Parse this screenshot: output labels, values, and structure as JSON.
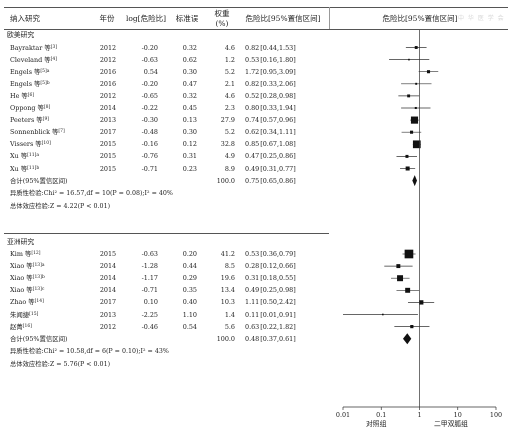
{
  "headers": {
    "study": "纳入研究",
    "year": "年份",
    "log": "log[危险比]",
    "se": "标准误",
    "weight_1": "权重",
    "weight_2": "(%)",
    "ci": "危险比[95%置信区间]",
    "plot": "危险比[95%置信区间]"
  },
  "watermark": "中 华 医 学 会",
  "groups": [
    {
      "name": "欧美研究",
      "rows": [
        {
          "author": "Bayraktar 等",
          "ref": "[3]",
          "year": "2012",
          "log": "-0.20",
          "se": "0.32",
          "weight": "4.6",
          "hr": "0.82",
          "ci": "[0.44,1.53]"
        },
        {
          "author": "Cleveland 等",
          "ref": "[4]",
          "year": "2012",
          "log": "-0.63",
          "se": "0.62",
          "weight": "1.2",
          "hr": "0.53",
          "ci": "[0.16,1.80]"
        },
        {
          "author": "Engels 等",
          "ref": "[5]a",
          "year": "2016",
          "log": "0.54",
          "se": "0.30",
          "weight": "5.2",
          "hr": "1.72",
          "ci": "[0.95,3.09]"
        },
        {
          "author": "Engels 等",
          "ref": "[5]b",
          "year": "2016",
          "log": "-0.20",
          "se": "0.47",
          "weight": "2.1",
          "hr": "0.82",
          "ci": "[0.33,2.06]"
        },
        {
          "author": "He 等",
          "ref": "[6]",
          "year": "2012",
          "log": "-0.65",
          "se": "0.32",
          "weight": "4.6",
          "hr": "0.52",
          "ci": "[0.28,0.98]"
        },
        {
          "author": "Oppong 等",
          "ref": "[8]",
          "year": "2014",
          "log": "-0.22",
          "se": "0.45",
          "weight": "2.3",
          "hr": "0.80",
          "ci": "[0.33,1.94]"
        },
        {
          "author": "Peeters 等",
          "ref": "[9]",
          "year": "2013",
          "log": "-0.30",
          "se": "0.13",
          "weight": "27.9",
          "hr": "0.74",
          "ci": "[0.57,0.96]"
        },
        {
          "author": "Sonnenblick 等",
          "ref": "[7]",
          "year": "2017",
          "log": "-0.48",
          "se": "0.30",
          "weight": "5.2",
          "hr": "0.62",
          "ci": "[0.34,1.11]"
        },
        {
          "author": "Vissers 等",
          "ref": "[10]",
          "year": "2015",
          "log": "-0.16",
          "se": "0.12",
          "weight": "32.8",
          "hr": "0.85",
          "ci": "[0.67,1.08]"
        },
        {
          "author": "Xu 等",
          "ref": "[11]a",
          "year": "2015",
          "log": "-0.76",
          "se": "0.31",
          "weight": "4.9",
          "hr": "0.47",
          "ci": "[0.25,0.86]"
        },
        {
          "author": "Xu 等",
          "ref": "[11]b",
          "year": "2015",
          "log": "-0.71",
          "se": "0.23",
          "weight": "8.9",
          "hr": "0.49",
          "ci": "[0.31,0.77]"
        }
      ],
      "total": {
        "label": "合计(95%置信区间)",
        "weight": "100.0",
        "hr": "0.75",
        "ci": "[0.65,0.86]"
      },
      "heterogeneity": "异质性检验:Chi² = 16.57,df = 10(P = 0.08);I² = 40%",
      "overall": "总体效应检验:Z = 4.22(P < 0.01)"
    },
    {
      "name": "亚洲研究",
      "rows": [
        {
          "author": "Kim 等",
          "ref": "[12]",
          "year": "2015",
          "log": "-0.63",
          "se": "0.20",
          "weight": "41.2",
          "hr": "0.53",
          "ci": "[0.36,0.79]"
        },
        {
          "author": "Xiao 等",
          "ref": "[13]a",
          "year": "2014",
          "log": "-1.28",
          "se": "0.44",
          "weight": "8.5",
          "hr": "0.28",
          "ci": "[0.12,0.66]"
        },
        {
          "author": "Xiao 等",
          "ref": "[13]b",
          "year": "2014",
          "log": "-1.17",
          "se": "0.29",
          "weight": "19.6",
          "hr": "0.31",
          "ci": "[0.18,0.55]"
        },
        {
          "author": "Xiao 等",
          "ref": "[13]c",
          "year": "2014",
          "log": "-0.71",
          "se": "0.35",
          "weight": "13.4",
          "hr": "0.49",
          "ci": "[0.25,0.98]"
        },
        {
          "author": "Zhao 等",
          "ref": "[14]",
          "year": "2017",
          "log": "0.10",
          "se": "0.40",
          "weight": "10.3",
          "hr": "1.11",
          "ci": "[0.50,2.42]"
        },
        {
          "author": "朱闻捷",
          "ref": "[15]",
          "year": "2013",
          "log": "-2.25",
          "se": "1.10",
          "weight": "1.4",
          "hr": "0.11",
          "ci": "[0.01,0.91]"
        },
        {
          "author": "赵菁",
          "ref": "[16]",
          "year": "2012",
          "log": "-0.46",
          "se": "0.54",
          "weight": "5.6",
          "hr": "0.63",
          "ci": "[0.22,1.82]"
        }
      ],
      "total": {
        "label": "合计(95%置信区间)",
        "weight": "100.0",
        "hr": "0.48",
        "ci": "[0.37,0.61]"
      },
      "heterogeneity": "异质性检验:Chi² = 10.58,df = 6(P = 0.10);I² = 43%",
      "overall": "总体效应检验:Z = 5.76(P < 0.01)"
    }
  ],
  "axis": {
    "ticks": [
      0.01,
      0.1,
      1,
      10,
      100
    ],
    "tick_labels": [
      "0.01",
      "0.1",
      "1",
      "10",
      "100"
    ],
    "scale": "log",
    "left_label": "对照组",
    "right_label": "二甲双胍组"
  },
  "chart_data": {
    "type": "scatter",
    "xscale": "log",
    "xlim": [
      0.01,
      100
    ],
    "reference_line": 1,
    "groups": [
      {
        "name": "欧美研究",
        "studies": [
          {
            "hr": 0.82,
            "lo": 0.44,
            "hi": 1.53,
            "weight": 4.6
          },
          {
            "hr": 0.53,
            "lo": 0.16,
            "hi": 1.8,
            "weight": 1.2
          },
          {
            "hr": 1.72,
            "lo": 0.95,
            "hi": 3.09,
            "weight": 5.2
          },
          {
            "hr": 0.82,
            "lo": 0.33,
            "hi": 2.06,
            "weight": 2.1
          },
          {
            "hr": 0.52,
            "lo": 0.28,
            "hi": 0.98,
            "weight": 4.6
          },
          {
            "hr": 0.8,
            "lo": 0.33,
            "hi": 1.94,
            "weight": 2.3
          },
          {
            "hr": 0.74,
            "lo": 0.57,
            "hi": 0.96,
            "weight": 27.9
          },
          {
            "hr": 0.62,
            "lo": 0.34,
            "hi": 1.11,
            "weight": 5.2
          },
          {
            "hr": 0.85,
            "lo": 0.67,
            "hi": 1.08,
            "weight": 32.8
          },
          {
            "hr": 0.47,
            "lo": 0.25,
            "hi": 0.86,
            "weight": 4.9
          },
          {
            "hr": 0.49,
            "lo": 0.31,
            "hi": 0.77,
            "weight": 8.9
          }
        ],
        "pooled": {
          "hr": 0.75,
          "lo": 0.65,
          "hi": 0.86
        }
      },
      {
        "name": "亚洲研究",
        "studies": [
          {
            "hr": 0.53,
            "lo": 0.36,
            "hi": 0.79,
            "weight": 41.2
          },
          {
            "hr": 0.28,
            "lo": 0.12,
            "hi": 0.66,
            "weight": 8.5
          },
          {
            "hr": 0.31,
            "lo": 0.18,
            "hi": 0.55,
            "weight": 19.6
          },
          {
            "hr": 0.49,
            "lo": 0.25,
            "hi": 0.98,
            "weight": 13.4
          },
          {
            "hr": 1.11,
            "lo": 0.5,
            "hi": 2.42,
            "weight": 10.3
          },
          {
            "hr": 0.11,
            "lo": 0.01,
            "hi": 0.91,
            "weight": 1.4
          },
          {
            "hr": 0.63,
            "lo": 0.22,
            "hi": 1.82,
            "weight": 5.6
          }
        ],
        "pooled": {
          "hr": 0.48,
          "lo": 0.37,
          "hi": 0.61
        }
      }
    ]
  }
}
